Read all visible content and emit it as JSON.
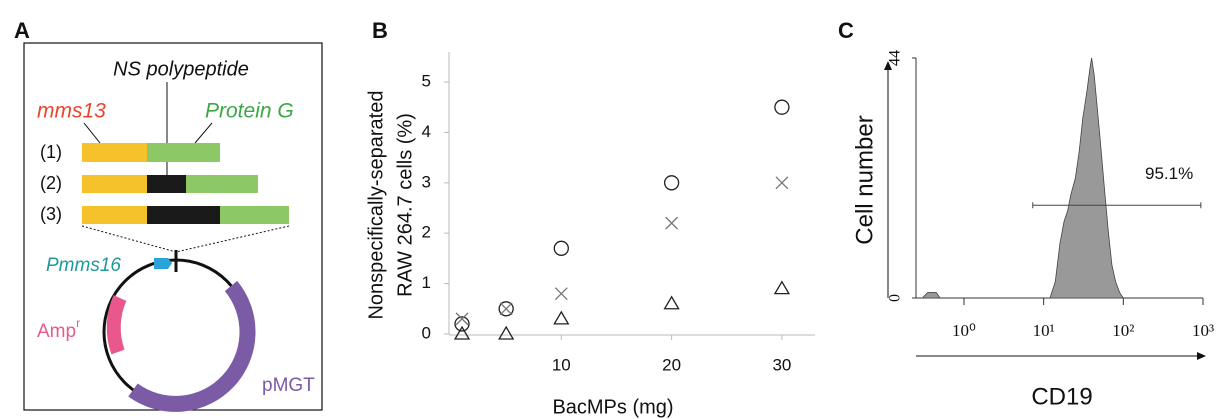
{
  "panels": [
    "A",
    "B",
    "C"
  ],
  "diagram": {
    "insert": "NS polypeptide",
    "left_gene": "mms13",
    "right_gene": "Protein G",
    "rows": [
      "(1)",
      "(2)",
      "(3)"
    ],
    "promoter": "Pmms16",
    "resistance": {
      "label": "Amp",
      "superscript": "r"
    },
    "vector": "pMGT"
  },
  "chart_data": [
    {
      "type": "scatter",
      "xlabel": "BacMPs (mg)",
      "ylabel": [
        "Nonspecifically-separated",
        "RAW 264.7 cells (%)"
      ],
      "x": [
        1,
        5,
        10,
        20,
        30
      ],
      "series": [
        {
          "marker": "circle",
          "color": "#222222",
          "values": [
            0.2,
            0.5,
            1.7,
            3,
            4.5
          ]
        },
        {
          "marker": "cross",
          "color": "#777777",
          "values": [
            0.3,
            0.5,
            0.8,
            2.2,
            3
          ]
        },
        {
          "marker": "triangle",
          "color": "#222222",
          "values": [
            0,
            0,
            0.3,
            0.6,
            0.9
          ]
        }
      ],
      "xlim": [
        0,
        33
      ],
      "xticks": [
        10,
        20,
        30
      ],
      "ylim": [
        0,
        5
      ],
      "yticks": [
        0,
        1,
        2,
        3,
        4,
        5
      ]
    },
    {
      "type": "area",
      "xlabel": "CD19",
      "ylabel": "Cell number",
      "color": "#999999",
      "log_x": true,
      "x": [
        0.3,
        0.35,
        0.4,
        0.45,
        0.5,
        null,
        12,
        14,
        16,
        18,
        20,
        22,
        25,
        28,
        31,
        35,
        38,
        40,
        43,
        47,
        52,
        58,
        65,
        72,
        80,
        90,
        100
      ],
      "values": [
        0,
        1,
        1,
        1,
        0,
        null,
        0,
        3,
        10,
        14,
        16,
        19,
        22,
        27,
        33,
        38,
        42,
        44,
        41,
        35,
        28,
        20,
        12,
        6,
        3,
        1,
        0
      ],
      "xlim": [
        0.25,
        1000
      ],
      "xticks": [
        {
          "value": 1,
          "label": "10⁰"
        },
        {
          "value": 10,
          "label": "10¹"
        },
        {
          "value": 100,
          "label": "10²"
        },
        {
          "value": 1000,
          "label": "10³"
        }
      ],
      "ylim": [
        0,
        44
      ],
      "yticks": [
        0,
        44
      ],
      "gate": {
        "x": [
          7.3,
          940
        ],
        "y": 17
      },
      "gate_label": "95.1%"
    }
  ]
}
